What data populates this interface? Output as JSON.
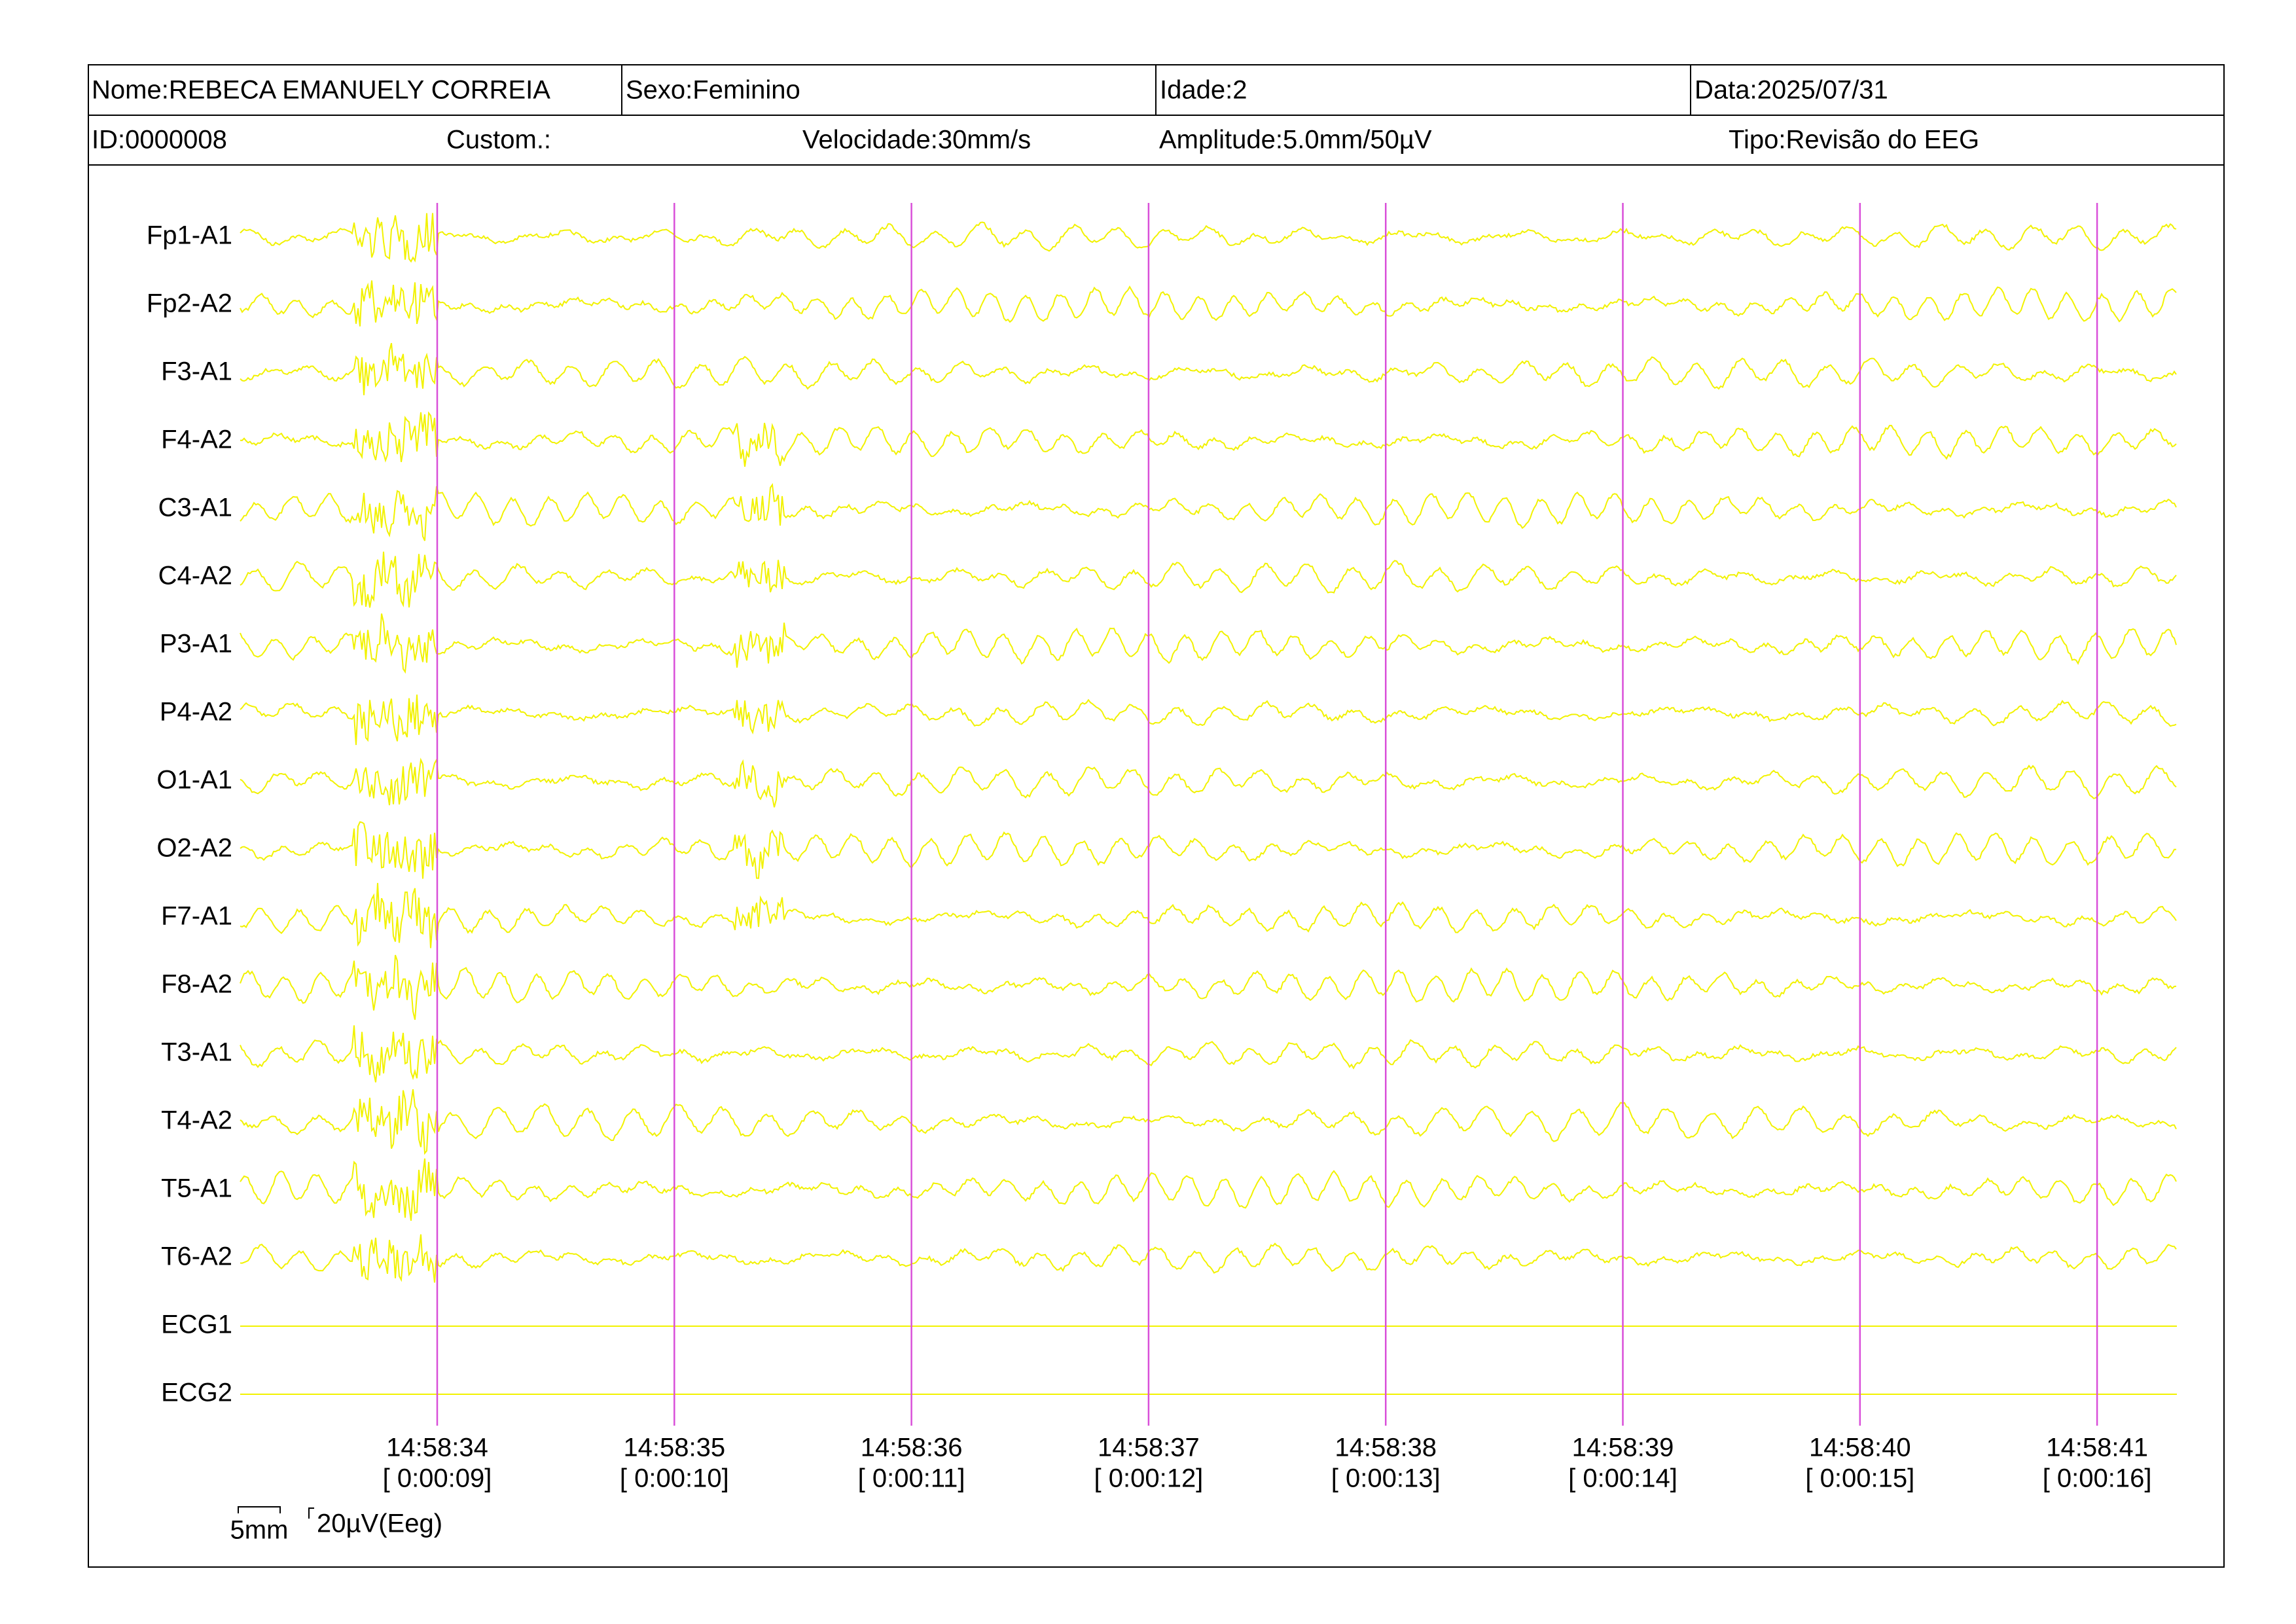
{
  "header": {
    "row1": [
      "Nome:REBECA EMANUELY CORREIA",
      "Sexo:Feminino",
      "Idade:2",
      "Data:2025/07/31"
    ],
    "row2": [
      "ID:0000008",
      "Custom.:",
      "Velocidade:30mm/s",
      "Amplitude:5.0mm/50µV",
      "Tipo:Revisão do EEG"
    ]
  },
  "channels": [
    "Fp1-A1",
    "Fp2-A2",
    "F3-A1",
    "F4-A2",
    "C3-A1",
    "C4-A2",
    "P3-A1",
    "P4-A2",
    "O1-A1",
    "O2-A2",
    "F7-A1",
    "F8-A2",
    "T3-A1",
    "T4-A2",
    "T5-A1",
    "T6-A2",
    "ECG1",
    "ECG2"
  ],
  "time_markers": [
    {
      "time": "14:58:34",
      "elapsed": "[ 0:00:09]"
    },
    {
      "time": "14:58:35",
      "elapsed": "[ 0:00:10]"
    },
    {
      "time": "14:58:36",
      "elapsed": "[ 0:00:11]"
    },
    {
      "time": "14:58:37",
      "elapsed": "[ 0:00:12]"
    },
    {
      "time": "14:58:38",
      "elapsed": "[ 0:00:13]"
    },
    {
      "time": "14:58:39",
      "elapsed": "[ 0:00:14]"
    },
    {
      "time": "14:58:40",
      "elapsed": "[ 0:00:15]"
    },
    {
      "time": "14:58:41",
      "elapsed": "[ 0:00:16]"
    }
  ],
  "scale": {
    "time": "5mm",
    "amplitude": "20µV(Eeg)"
  }
}
